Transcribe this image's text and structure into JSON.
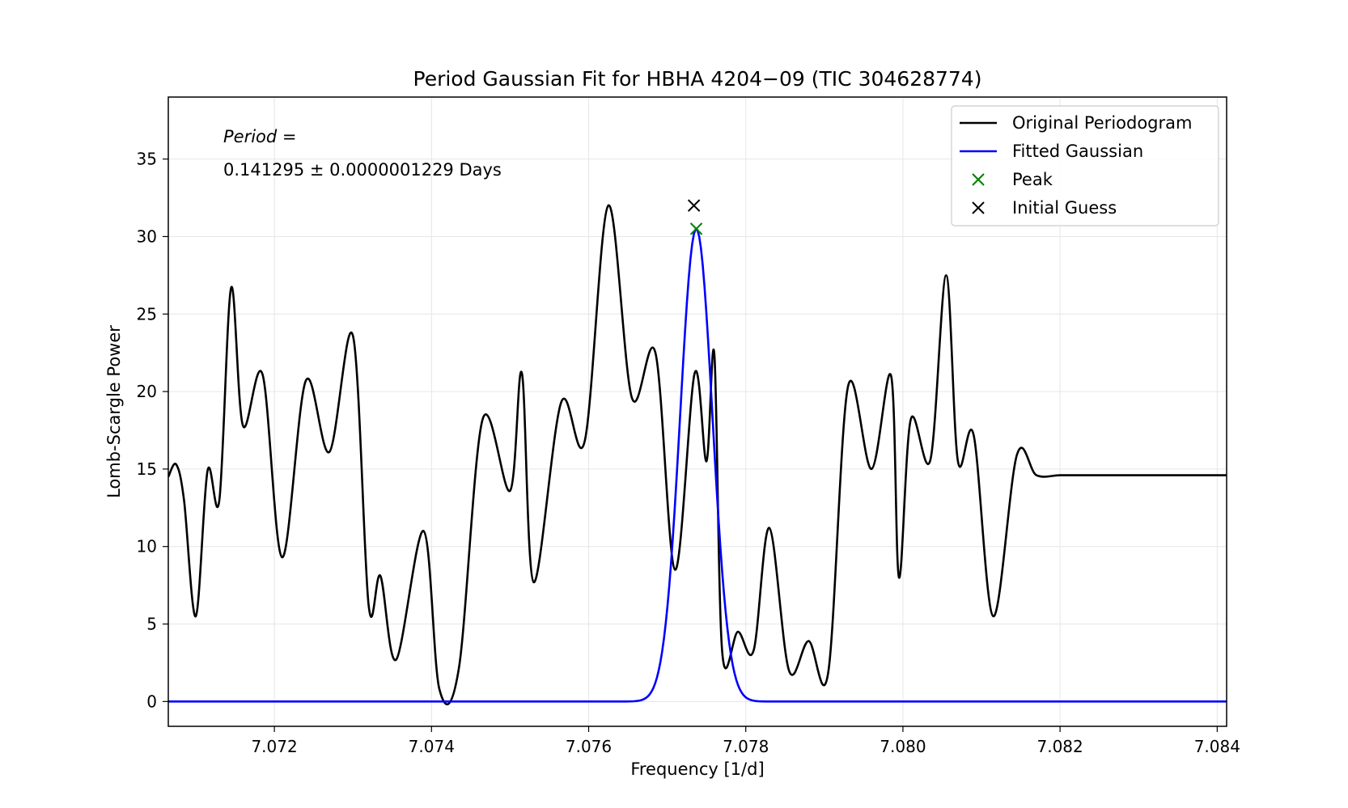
{
  "chart_data": {
    "type": "line",
    "title": "Period Gaussian Fit for HBHA 4204−09 (TIC 304628774)",
    "xlabel": "Frequency [1/d]",
    "ylabel": "Lomb-Scargle Power",
    "xlim": [
      7.07065,
      7.08412
    ],
    "ylim": [
      -1.6,
      39.0
    ],
    "grid": true,
    "legend_position": "top-right",
    "xticks": [
      7.072,
      7.074,
      7.076,
      7.078,
      7.08,
      7.082,
      7.084
    ],
    "xtick_labels": [
      "7.072",
      "7.074",
      "7.076",
      "7.078",
      "7.080",
      "7.082",
      "7.084"
    ],
    "yticks": [
      0,
      5,
      10,
      15,
      20,
      25,
      30,
      35
    ],
    "ytick_labels": [
      "0",
      "5",
      "10",
      "15",
      "20",
      "25",
      "30",
      "35"
    ],
    "annotation": {
      "line1": "Period =",
      "line2": "0.141295 ± 0.0000001229 Days"
    },
    "series": [
      {
        "name": "Original Periodogram",
        "color": "#000000",
        "style": "line",
        "x": [
          7.07065,
          7.07075,
          7.07085,
          7.071,
          7.07115,
          7.0713,
          7.07145,
          7.0716,
          7.07185,
          7.0721,
          7.0724,
          7.0727,
          7.073,
          7.0732,
          7.07335,
          7.07355,
          7.0739,
          7.0741,
          7.07435,
          7.07465,
          7.075,
          7.07515,
          7.0753,
          7.07565,
          7.07595,
          7.07625,
          7.07655,
          7.07685,
          7.0771,
          7.07735,
          7.0775,
          7.0776,
          7.0777,
          7.0779,
          7.0781,
          7.0783,
          7.07855,
          7.0788,
          7.07905,
          7.0793,
          7.0796,
          7.07985,
          7.07995,
          7.0801,
          7.08035,
          7.08055,
          7.0807,
          7.0809,
          7.08115,
          7.08145,
          7.0817,
          7.082,
          7.0823,
          7.0825,
          7.08285,
          7.08315,
          7.0834,
          7.0837,
          7.084,
          7.08412
        ],
        "y": [
          14.5,
          15.3,
          13.0,
          5.5,
          14.9,
          13.0,
          26.7,
          17.8,
          21.1,
          9.3,
          20.7,
          16.1,
          23.6,
          6.2,
          8.1,
          2.7,
          11.0,
          0.8,
          2.2,
          18.2,
          13.6,
          21.2,
          7.7,
          19.3,
          16.8,
          32.0,
          19.6,
          22.5,
          8.5,
          21.2,
          15.5,
          22.4,
          3.2,
          4.5,
          3.3,
          11.2,
          2.0,
          3.9,
          1.9,
          20.3,
          15.0,
          21.0,
          8.0,
          18.2,
          15.6,
          27.5,
          15.5,
          17.2,
          5.5,
          15.9,
          14.6,
          14.6,
          14.6,
          14.6,
          14.6,
          14.6,
          14.6,
          14.6,
          14.6,
          14.6
        ]
      },
      {
        "name": "Fitted Gaussian",
        "color": "#0000ff",
        "style": "line",
        "gaussian": {
          "amplitude": 30.5,
          "center": 7.07737,
          "sigma": 0.000205,
          "offset": 0.0
        }
      },
      {
        "name": "Peak",
        "color": "#008000",
        "style": "marker",
        "marker": "x",
        "x": [
          7.07737
        ],
        "y": [
          30.5
        ]
      },
      {
        "name": "Initial Guess",
        "color": "#000000",
        "style": "marker",
        "marker": "x",
        "x": [
          7.07734
        ],
        "y": [
          32.0
        ]
      }
    ]
  }
}
